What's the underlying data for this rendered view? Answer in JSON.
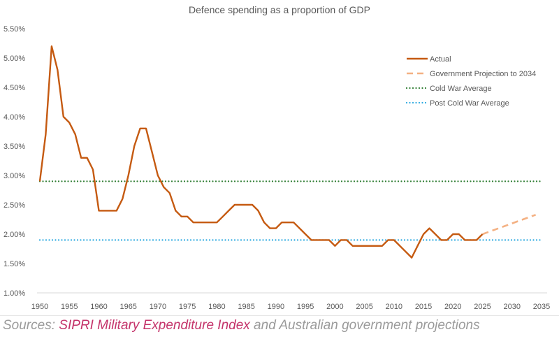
{
  "chart_data": {
    "type": "line",
    "title": "Defence spending as a proportion of GDP",
    "xlabel": "",
    "ylabel": "",
    "xlim": [
      1950,
      2035
    ],
    "ylim": [
      1.0,
      5.5
    ],
    "x_ticks": [
      "1950",
      "1955",
      "1960",
      "1965",
      "1970",
      "1975",
      "1980",
      "1985",
      "1990",
      "1995",
      "2000",
      "2005",
      "2010",
      "2015",
      "2020",
      "2025",
      "2030",
      "2035"
    ],
    "y_ticks": [
      "1.00%",
      "1.50%",
      "2.00%",
      "2.50%",
      "3.00%",
      "3.50%",
      "4.00%",
      "4.50%",
      "5.00%",
      "5.50%"
    ],
    "grid": false,
    "legend_position": "top-right",
    "series": [
      {
        "name": "Actual",
        "style": "solid",
        "color": "#c55a11",
        "x": [
          1950,
          1951,
          1952,
          1953,
          1954,
          1955,
          1956,
          1957,
          1958,
          1959,
          1960,
          1961,
          1962,
          1963,
          1964,
          1965,
          1966,
          1967,
          1968,
          1969,
          1970,
          1971,
          1972,
          1973,
          1974,
          1975,
          1976,
          1977,
          1978,
          1979,
          1980,
          1981,
          1982,
          1983,
          1984,
          1985,
          1986,
          1987,
          1988,
          1989,
          1990,
          1991,
          1992,
          1993,
          1994,
          1995,
          1996,
          1997,
          1998,
          1999,
          2000,
          2001,
          2002,
          2003,
          2004,
          2005,
          2006,
          2007,
          2008,
          2009,
          2010,
          2011,
          2012,
          2013,
          2014,
          2015,
          2016,
          2017,
          2018,
          2019,
          2020,
          2021,
          2022,
          2023,
          2024,
          2025
        ],
        "values": [
          2.9,
          3.7,
          5.2,
          4.8,
          4.0,
          3.9,
          3.7,
          3.3,
          3.3,
          3.1,
          2.4,
          2.4,
          2.4,
          2.4,
          2.6,
          3.0,
          3.5,
          3.8,
          3.8,
          3.4,
          3.0,
          2.8,
          2.7,
          2.4,
          2.3,
          2.3,
          2.2,
          2.2,
          2.2,
          2.2,
          2.2,
          2.3,
          2.4,
          2.5,
          2.5,
          2.5,
          2.5,
          2.4,
          2.2,
          2.1,
          2.1,
          2.2,
          2.2,
          2.2,
          2.1,
          2.0,
          1.9,
          1.9,
          1.9,
          1.9,
          1.8,
          1.9,
          1.9,
          1.8,
          1.8,
          1.8,
          1.8,
          1.8,
          1.8,
          1.9,
          1.9,
          1.8,
          1.7,
          1.6,
          1.8,
          2.0,
          2.1,
          2.0,
          1.9,
          1.9,
          2.0,
          2.0,
          1.9,
          1.9,
          1.9,
          2.0
        ]
      },
      {
        "name": "Government Projection to 2034",
        "style": "dashed",
        "color": "#f4b183",
        "x": [
          2025,
          2034
        ],
        "values": [
          2.0,
          2.33
        ]
      },
      {
        "name": "Cold War Average",
        "style": "dotted",
        "color": "#2e7d32",
        "x": [
          1950,
          2035
        ],
        "values": [
          2.9,
          2.9
        ]
      },
      {
        "name": "Post Cold War Average",
        "style": "dotted",
        "color": "#29a8e0",
        "x": [
          1950,
          2035
        ],
        "values": [
          1.9,
          1.9
        ]
      }
    ]
  },
  "footer": {
    "prefix": "Sources: ",
    "link": "SIPRI Military Expenditure Index",
    "suffix": " and Australian government projections"
  }
}
